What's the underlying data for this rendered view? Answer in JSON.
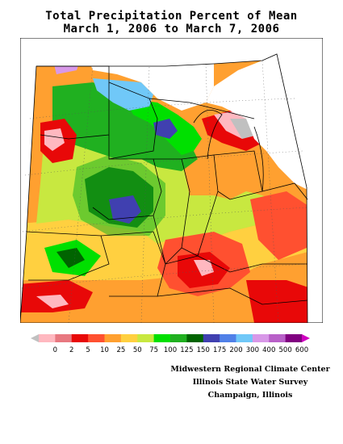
{
  "title": {
    "line1": "Total Precipitation Percent of Mean",
    "line2": "March 1, 2006 to March 7, 2006"
  },
  "legend": {
    "ticks": [
      "0",
      "2",
      "5",
      "10",
      "25",
      "50",
      "75",
      "100",
      "125",
      "150",
      "175",
      "200",
      "300",
      "400",
      "500",
      "600"
    ],
    "colors": [
      "#c0c0c0",
      "#ffb8c0",
      "#e87880",
      "#e80808",
      "#ff5030",
      "#ffa030",
      "#ffd040",
      "#c8e840",
      "#00e000",
      "#20b020",
      "#006400",
      "#4040b0",
      "#5080e8",
      "#70c8f8",
      "#d898e8",
      "#b860c8",
      "#800080",
      "#d000c0"
    ]
  },
  "credits": {
    "line1": "Midwestern Regional Climate Center",
    "line2": "Illinois State Water Survey",
    "line3": "Champaign, Illinois"
  }
}
